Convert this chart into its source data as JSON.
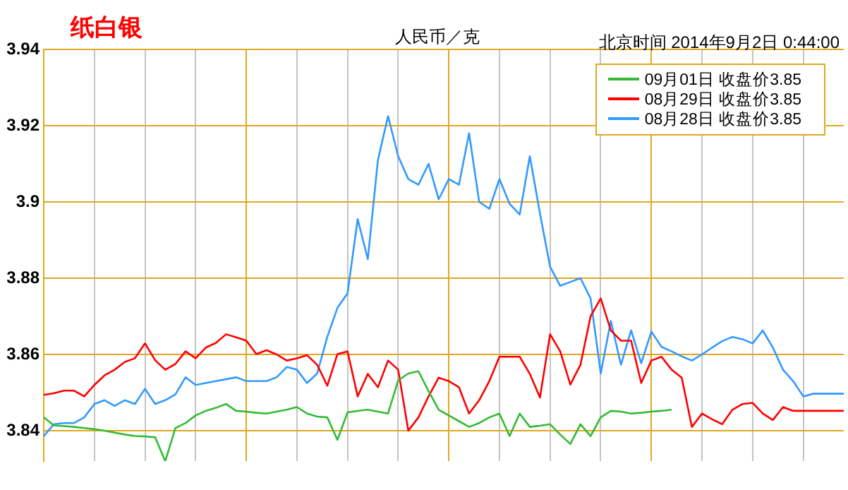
{
  "chart_data": {
    "type": "line",
    "title": "纸白银",
    "subtitle": "人民币／克",
    "annotations": [
      "北京时间 2014年9月2日 0:44:00"
    ],
    "categories": [
      null,
      null,
      null,
      null,
      null,
      null,
      null,
      null,
      null,
      null,
      null,
      null,
      null,
      null,
      null,
      null,
      null,
      null,
      null,
      null,
      null,
      null,
      null,
      null,
      null,
      null,
      null,
      null,
      null,
      null,
      null,
      null,
      null,
      null,
      null,
      null,
      null,
      null,
      null,
      null,
      null,
      null,
      null,
      null,
      null,
      null,
      null,
      null,
      null,
      null,
      null,
      null,
      null,
      null,
      null,
      null,
      null,
      null,
      null,
      null,
      null,
      null,
      null,
      null,
      null,
      null,
      null,
      null,
      null,
      null,
      null,
      null,
      null,
      null,
      null,
      null,
      null,
      null,
      null,
      null
    ],
    "ylim": [
      3.832,
      3.94
    ],
    "yticks": [
      3.84,
      3.86,
      3.88,
      3.9,
      3.92,
      3.94
    ],
    "grid": true,
    "legend": "top right",
    "marker": "none",
    "line_style": "solid",
    "series": [
      {
        "name": "09月01日 收盘价3.85",
        "color": "#33bb33",
        "values": [
          3.8435,
          3.8414,
          3.8412,
          3.841,
          3.8407,
          3.8404,
          3.84,
          3.8395,
          3.839,
          3.8386,
          3.8385,
          3.8383,
          3.832,
          3.8407,
          3.842,
          3.844,
          3.8452,
          3.846,
          3.847,
          3.8452,
          3.845,
          3.8447,
          3.8445,
          3.845,
          3.8455,
          3.8462,
          3.8445,
          3.8437,
          3.8435,
          3.8376,
          3.8448,
          3.8452,
          3.8455,
          3.845,
          3.8445,
          3.8532,
          3.855,
          3.8556,
          3.8504,
          3.8455,
          3.844,
          3.8425,
          3.841,
          3.842,
          3.8435,
          3.8445,
          3.8386,
          3.8445,
          3.841,
          3.8413,
          3.8417,
          3.839,
          3.8365,
          3.8417,
          3.8386,
          3.8435,
          3.8452,
          3.845,
          3.8445,
          3.8447,
          3.845,
          3.8452,
          3.8455,
          null,
          null,
          null,
          null,
          null,
          null,
          null,
          null,
          null,
          null,
          null,
          null,
          null,
          null,
          null,
          null,
          null
        ]
      },
      {
        "name": "08月29日 收盘价3.85",
        "color": "#ff0000",
        "values": [
          3.8494,
          3.8498,
          3.8505,
          3.8505,
          3.849,
          3.852,
          3.8545,
          3.856,
          3.858,
          3.859,
          3.8629,
          3.8585,
          3.856,
          3.8575,
          3.8608,
          3.859,
          3.8618,
          3.863,
          3.8653,
          3.8645,
          3.8636,
          3.8601,
          3.8611,
          3.86,
          3.8584,
          3.859,
          3.8598,
          3.8573,
          3.8518,
          3.8601,
          3.8608,
          3.849,
          3.8549,
          3.8514,
          3.8584,
          3.856,
          3.84,
          3.8435,
          3.849,
          3.8539,
          3.853,
          3.8514,
          3.8445,
          3.848,
          3.853,
          3.8594,
          3.8594,
          3.8594,
          3.8549,
          3.8487,
          3.8653,
          3.8608,
          3.8521,
          3.8573,
          3.87,
          3.8747,
          3.8663,
          3.8636,
          3.8636,
          3.8525,
          3.8584,
          3.8594,
          3.856,
          3.8539,
          3.841,
          3.8445,
          3.843,
          3.8417,
          3.8455,
          3.847,
          3.8473,
          3.8445,
          3.8428,
          3.8462,
          3.8452,
          3.8452,
          3.8452,
          3.8452,
          3.8452,
          3.8452
        ]
      },
      {
        "name": "08月28日 收盘价3.85",
        "color": "#3399ff",
        "values": [
          3.8386,
          3.8417,
          3.842,
          3.842,
          3.8435,
          3.847,
          3.848,
          3.8465,
          3.848,
          3.847,
          3.851,
          3.847,
          3.848,
          3.8495,
          3.854,
          3.852,
          3.8525,
          3.853,
          3.8535,
          3.854,
          3.853,
          3.853,
          3.853,
          3.854,
          3.8567,
          3.856,
          3.8525,
          3.855,
          3.8646,
          3.8722,
          3.876,
          3.8955,
          3.885,
          3.911,
          3.9225,
          3.912,
          3.906,
          3.9045,
          3.91,
          3.9007,
          3.906,
          3.9045,
          3.918,
          3.9,
          3.8982,
          3.906,
          3.8995,
          3.8967,
          3.912,
          3.897,
          3.883,
          3.878,
          3.879,
          3.88,
          3.8747,
          3.855,
          3.8688,
          3.8573,
          3.8663,
          3.8577,
          3.866,
          3.862,
          3.8608,
          3.8595,
          3.8584,
          3.86,
          3.8618,
          3.8635,
          3.8646,
          3.864,
          3.8629,
          3.8663,
          3.8618,
          3.856,
          3.853,
          3.849,
          3.8497,
          3.8497,
          3.8497,
          3.8497
        ]
      }
    ]
  }
}
